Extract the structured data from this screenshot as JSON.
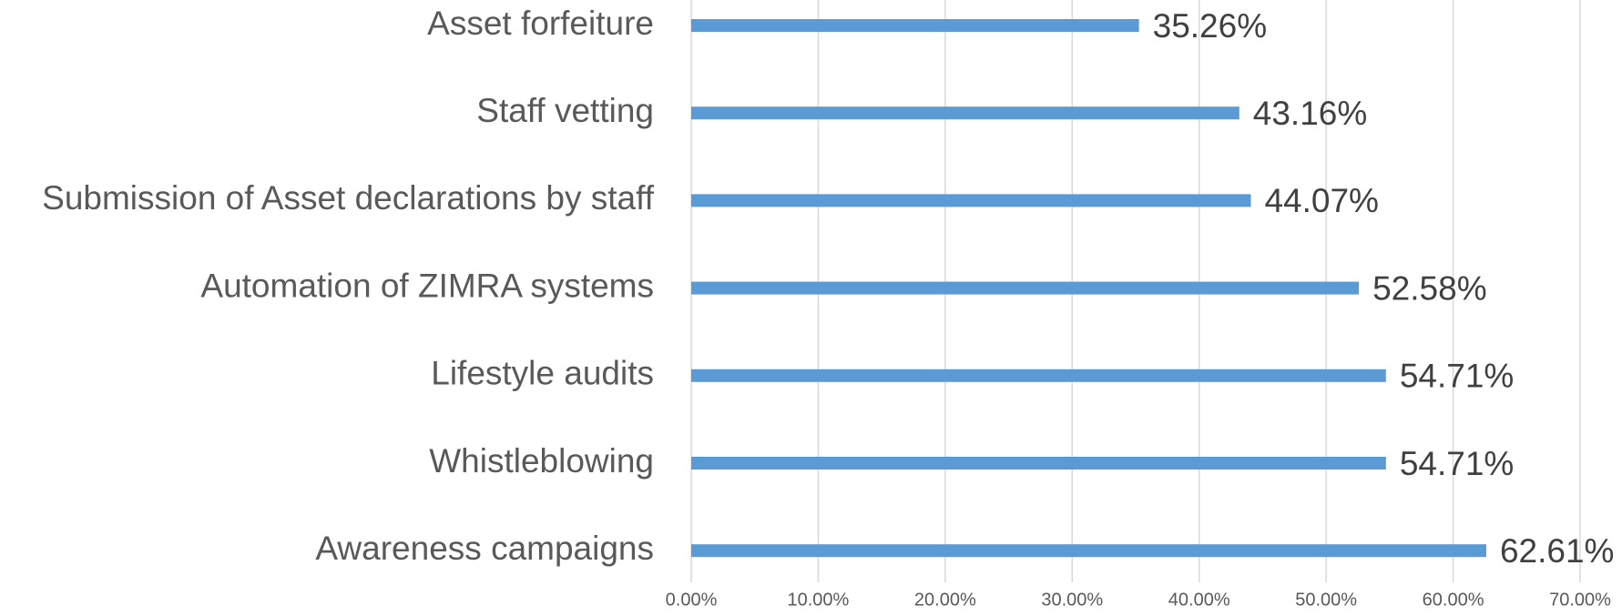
{
  "chart_data": {
    "type": "bar",
    "orientation": "horizontal",
    "categories": [
      "Asset forfeiture",
      "Staff vetting",
      "Submission of Asset declarations by staff",
      "Automation of ZIMRA systems",
      "Lifestyle audits",
      "Whistleblowing",
      "Awareness campaigns"
    ],
    "values": [
      35.26,
      43.16,
      44.07,
      52.58,
      54.71,
      54.71,
      62.61
    ],
    "value_labels": [
      "35.26%",
      "43.16%",
      "44.07%",
      "52.58%",
      "54.71%",
      "54.71%",
      "62.61%"
    ],
    "color": "#5b9bd5",
    "xlim": [
      0,
      70
    ],
    "xticks": [
      {
        "value": 0,
        "label": "0.00%"
      },
      {
        "value": 10,
        "label": "10.00%"
      },
      {
        "value": 20,
        "label": "20.00%"
      },
      {
        "value": 30,
        "label": "30.00%"
      },
      {
        "value": 40,
        "label": "40.00%"
      },
      {
        "value": 50,
        "label": "50.00%"
      },
      {
        "value": 60,
        "label": "60.00%"
      },
      {
        "value": 70,
        "label": "70.00%"
      }
    ],
    "grid": true
  }
}
